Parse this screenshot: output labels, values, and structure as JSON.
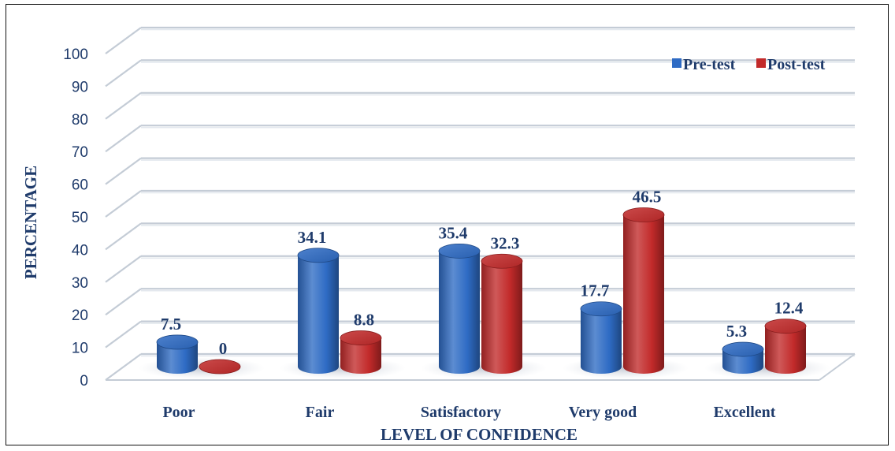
{
  "chart_data": {
    "type": "bar",
    "title": "",
    "xlabel": "LEVEL OF CONFIDENCE",
    "ylabel": "PERCENTAGE",
    "categories": [
      "Poor",
      "Fair",
      "Satisfactory",
      "Very good",
      "Excellent"
    ],
    "series": [
      {
        "name": "Pre-test",
        "values": [
          7.5,
          34.1,
          35.4,
          17.7,
          5.3
        ],
        "color": "#2e6bc4"
      },
      {
        "name": "Post-test",
        "values": [
          0,
          8.8,
          32.3,
          46.5,
          12.4
        ],
        "color": "#c22a2a"
      }
    ],
    "ylim": [
      0,
      100
    ],
    "yticks": [
      "0",
      "10",
      "20",
      "30",
      "40",
      "50",
      "60",
      "70",
      "80",
      "90",
      "100"
    ],
    "data_labels": [
      [
        "7.5",
        "34.1",
        "35.4",
        "17.7",
        "5.3"
      ],
      [
        "0",
        "8.8",
        "32.3",
        "46.5",
        "12.4"
      ]
    ],
    "grid": true,
    "legend_position": "top-right",
    "style": "3d-cylinder"
  }
}
